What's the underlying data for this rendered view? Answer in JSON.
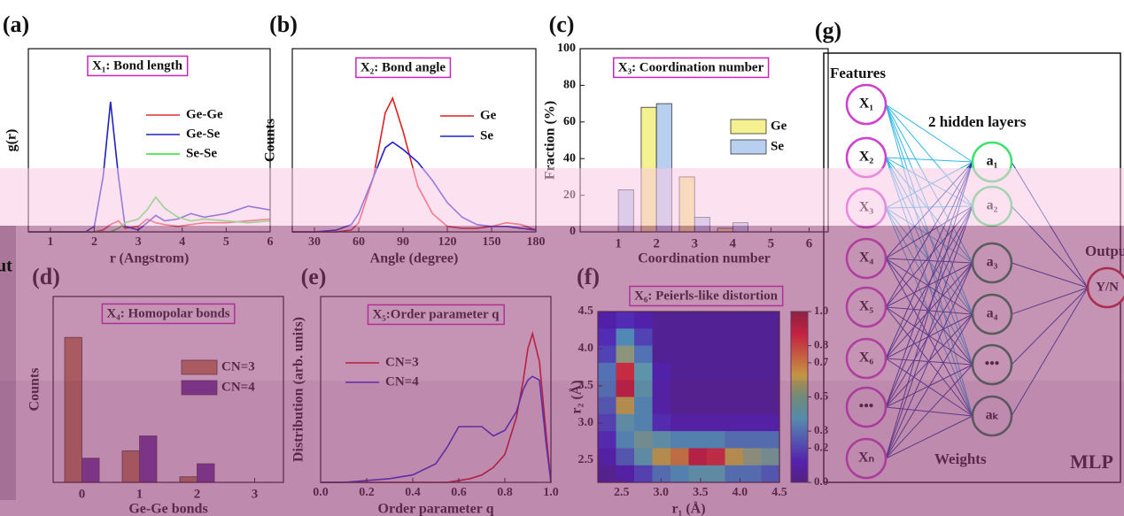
{
  "chart_data": [
    {
      "type": "line",
      "label": "(a)",
      "title": "X₁: Bond length",
      "xlabel": "r (Angstrom)",
      "ylabel": "g(r)",
      "xlim": [
        0.5,
        6
      ],
      "xticks": [
        1,
        2,
        3,
        4,
        5,
        6
      ],
      "ylim": [
        0,
        10
      ],
      "x": [
        0.5,
        1,
        1.5,
        1.8,
        2.0,
        2.2,
        2.37,
        2.55,
        2.7,
        3.0,
        3.2,
        3.4,
        3.6,
        3.9,
        4.2,
        4.5,
        5,
        5.5,
        6
      ],
      "series": [
        {
          "name": "Ge-Ge",
          "color": "#e03030",
          "values": [
            0,
            0,
            0,
            0,
            0,
            0.1,
            0.4,
            0.6,
            0.2,
            0.3,
            0.7,
            0.5,
            0.4,
            0.3,
            0.4,
            0.5,
            0.5,
            0.6,
            0.7
          ]
        },
        {
          "name": "Ge-Se",
          "color": "#2020c0",
          "values": [
            0,
            0,
            0,
            0,
            0.3,
            3,
            7.1,
            3,
            0.3,
            0.1,
            0.5,
            0.9,
            0.6,
            0.7,
            1.0,
            0.8,
            1.0,
            1.4,
            1.2
          ]
        },
        {
          "name": "Se-Se",
          "color": "#30e030",
          "values": [
            0,
            0,
            0,
            0,
            0,
            0,
            0,
            0.2,
            0.5,
            0.7,
            1.2,
            1.9,
            1.3,
            0.8,
            0.6,
            0.7,
            0.6,
            0.5,
            0.6
          ]
        }
      ]
    },
    {
      "type": "line",
      "label": "(b)",
      "title": "X₂: Bond angle",
      "xlabel": "Angle (degree)",
      "ylabel": "Counts",
      "xlim": [
        15,
        180
      ],
      "xticks": [
        30,
        60,
        90,
        120,
        150,
        180
      ],
      "ylim": [
        0,
        10
      ],
      "x": [
        15,
        30,
        45,
        55,
        60,
        70,
        78,
        83,
        90,
        100,
        110,
        120,
        130,
        140,
        150,
        160,
        170,
        180
      ],
      "series": [
        {
          "name": "Ge",
          "color": "#e02020",
          "values": [
            0,
            0,
            0,
            0.1,
            0.5,
            3,
            6.5,
            7.3,
            5.5,
            2.5,
            1,
            0.3,
            0.2,
            0.2,
            0.3,
            0.5,
            0.4,
            0.1
          ]
        },
        {
          "name": "Se",
          "color": "#2020d0",
          "values": [
            0,
            0,
            0.1,
            0.4,
            1,
            3,
            4.6,
            4.9,
            4.5,
            3.8,
            2.8,
            1.6,
            0.8,
            0.4,
            0.3,
            0.3,
            0.2,
            0.1
          ]
        }
      ]
    },
    {
      "type": "bar",
      "label": "(c)",
      "title": "X₃: Coordination number",
      "xlabel": "Coordination number",
      "ylabel": "Fraction (%)",
      "xlim": [
        0,
        6.5
      ],
      "ylim": [
        0,
        100
      ],
      "yticks": [
        0,
        20,
        40,
        60,
        80,
        100
      ],
      "categories": [
        1,
        2,
        3,
        4,
        5,
        6
      ],
      "series": [
        {
          "name": "Ge",
          "color": "#f5f090",
          "values": [
            0,
            68,
            30,
            2,
            0,
            0
          ]
        },
        {
          "name": "Se",
          "color": "#b8d0f0",
          "values": [
            23,
            70,
            8,
            5,
            0,
            0
          ]
        }
      ]
    },
    {
      "type": "bar",
      "label": "(d)",
      "title": "X₄: Homopolar bonds",
      "xlabel": "Ge-Ge bonds",
      "ylabel": "Counts",
      "xlim": [
        -0.5,
        3.5
      ],
      "ylim": [
        0,
        1
      ],
      "categories": [
        0,
        1,
        2,
        3
      ],
      "series": [
        {
          "name": "CN=3",
          "color": "#c08040",
          "values": [
            0.78,
            0.17,
            0.03,
            0
          ]
        },
        {
          "name": "CN=4",
          "color": "#6030a0",
          "values": [
            0.13,
            0.25,
            0.1,
            0
          ]
        }
      ]
    },
    {
      "type": "line",
      "label": "(e)",
      "title": "X₅:Order parameter q",
      "xlabel": "Order parameter q",
      "ylabel": "Distribution (arb. units)",
      "xlim": [
        0,
        1
      ],
      "ylim": [
        0,
        1
      ],
      "xticks": [
        {
          "value": 0,
          "label": "0.0"
        },
        0.2,
        0.4,
        0.6,
        0.8,
        {
          "value": 1,
          "label": "1.0"
        }
      ],
      "x": [
        0,
        0.1,
        0.2,
        0.3,
        0.4,
        0.5,
        0.55,
        0.6,
        0.65,
        0.7,
        0.75,
        0.8,
        0.85,
        0.88,
        0.9,
        0.92,
        0.95,
        0.98,
        1.0
      ],
      "series": [
        {
          "name": "CN=3",
          "color": "#e00000",
          "values": [
            0,
            0,
            0,
            0,
            0,
            0,
            0,
            0.01,
            0.02,
            0.04,
            0.08,
            0.15,
            0.35,
            0.55,
            0.72,
            0.8,
            0.65,
            0.25,
            0
          ]
        },
        {
          "name": "CN=4",
          "color": "#2020e0",
          "values": [
            0,
            0,
            0.01,
            0.02,
            0.04,
            0.1,
            0.19,
            0.3,
            0.3,
            0.3,
            0.25,
            0.28,
            0.38,
            0.5,
            0.55,
            0.57,
            0.55,
            0.2,
            0
          ]
        }
      ]
    },
    {
      "type": "heatmap",
      "label": "(f)",
      "title": "X₆: Peierls-like distortion",
      "xlabel": "r₁ (Å)",
      "ylabel": "r₂ (Å)",
      "xlim": [
        2.2,
        4.5
      ],
      "ylim": [
        2.2,
        4.5
      ],
      "zlim": [
        0,
        1
      ],
      "xticks": [
        2.5,
        {
          "value": 3,
          "label": "3.0"
        },
        3.5,
        {
          "value": 4,
          "label": "4.0"
        },
        4.5
      ],
      "yticks": [
        2.5,
        {
          "value": 3,
          "label": "3.0"
        },
        3.5,
        {
          "value": 4,
          "label": "4.0"
        },
        4.5
      ],
      "zticks": [
        {
          "value": 0,
          "label": "0.0"
        },
        0.2,
        0.3,
        0.5,
        0.7,
        0.8,
        {
          "value": 1,
          "label": "1.0"
        }
      ],
      "x": [
        2.315,
        2.545,
        2.775,
        3.005,
        3.235,
        3.465,
        3.695,
        3.925,
        4.155,
        4.385
      ],
      "y": [
        4.385,
        4.155,
        3.925,
        3.695,
        3.465,
        3.235,
        3.005,
        2.775,
        2.545,
        2.315
      ],
      "z": [
        [
          0.1,
          0.15,
          0.1,
          0.05,
          0.05,
          0.05,
          0.05,
          0.05,
          0.05,
          0.05
        ],
        [
          0.15,
          0.35,
          0.2,
          0.05,
          0.05,
          0.05,
          0.05,
          0.05,
          0.05,
          0.05
        ],
        [
          0.2,
          0.5,
          0.3,
          0.05,
          0.05,
          0.05,
          0.05,
          0.05,
          0.05,
          0.05
        ],
        [
          0.3,
          0.85,
          0.4,
          0.1,
          0.05,
          0.05,
          0.05,
          0.05,
          0.05,
          0.05
        ],
        [
          0.3,
          0.9,
          0.4,
          0.1,
          0.05,
          0.05,
          0.05,
          0.05,
          0.05,
          0.05
        ],
        [
          0.25,
          0.6,
          0.35,
          0.1,
          0.05,
          0.05,
          0.05,
          0.05,
          0.05,
          0.05
        ],
        [
          0.2,
          0.4,
          0.35,
          0.15,
          0.1,
          0.1,
          0.1,
          0.1,
          0.1,
          0.1
        ],
        [
          0.15,
          0.35,
          0.45,
          0.4,
          0.35,
          0.35,
          0.35,
          0.3,
          0.3,
          0.3
        ],
        [
          0.1,
          0.25,
          0.4,
          0.6,
          0.7,
          0.9,
          0.85,
          0.6,
          0.5,
          0.45
        ],
        [
          0.05,
          0.1,
          0.2,
          0.3,
          0.35,
          0.4,
          0.4,
          0.3,
          0.3,
          0.25
        ]
      ]
    }
  ],
  "diagram": {
    "label": "(g)",
    "features": "Features",
    "hidden_label": "2 hidden layers",
    "weights": "Weights",
    "output_label": "Output",
    "model": "MLP",
    "inputs": [
      "X₁",
      "X₂",
      "X₃",
      "X₄",
      "X₅",
      "X₆",
      "•••",
      "Xₙ"
    ],
    "hidden": [
      "a₁",
      "a₂",
      "a₃",
      "a₄",
      "•••",
      "aₖ"
    ],
    "output": "Y/N"
  },
  "fragment": "ut"
}
